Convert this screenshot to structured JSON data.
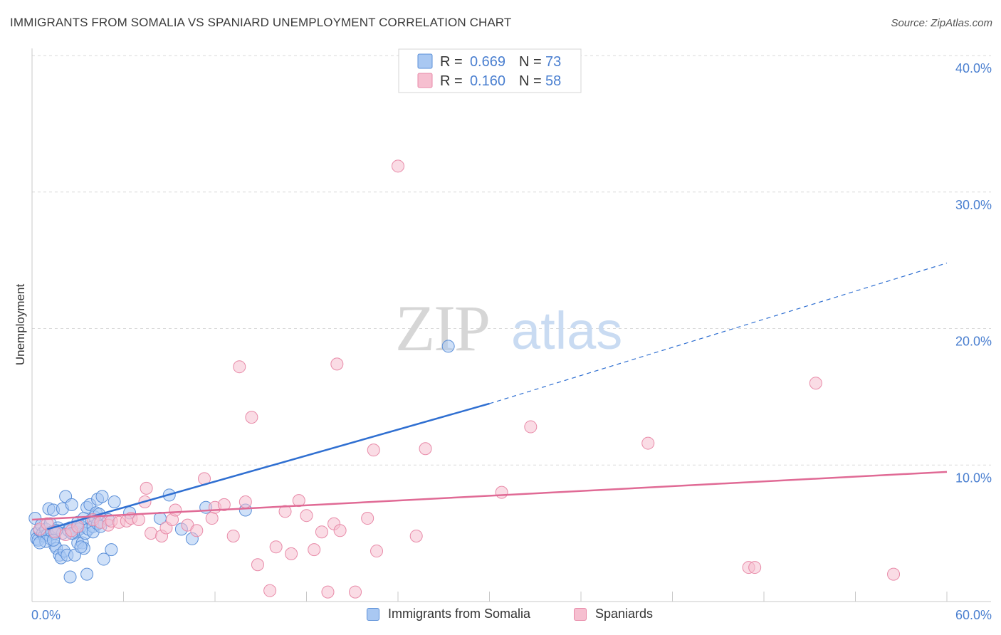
{
  "title": "IMMIGRANTS FROM SOMALIA VS SPANIARD UNEMPLOYMENT CORRELATION CHART",
  "source": "Source: ZipAtlas.com",
  "watermark": {
    "zip": "ZIP",
    "atlas": "atlas"
  },
  "legend_stats": [
    {
      "r_label": "R =",
      "r_value": "0.669",
      "n_label": "N =",
      "n_value": "73"
    },
    {
      "r_label": "R =",
      "r_value": "0.160",
      "n_label": "N =",
      "n_value": "58"
    }
  ],
  "colors": {
    "blue_fill": "#a9c8f2",
    "blue_stroke": "#5b8fd8",
    "blue_line": "#2f6fd1",
    "pink_fill": "#f6bfd0",
    "pink_stroke": "#e88aa8",
    "pink_line": "#e06a95",
    "axis_text": "#4a7fd0",
    "grid": "#d9d9d9"
  },
  "chart_data": {
    "type": "scatter",
    "title": "IMMIGRANTS FROM SOMALIA VS SPANIARD UNEMPLOYMENT CORRELATION CHART",
    "xlabel": "",
    "ylabel": "Unemployment",
    "xlim": [
      0,
      60
    ],
    "ylim": [
      0,
      40
    ],
    "x_tick_labels": [
      "0.0%",
      "60.0%"
    ],
    "y_ticks": [
      10,
      20,
      30,
      40
    ],
    "y_tick_labels": [
      "10.0%",
      "20.0%",
      "30.0%",
      "40.0%"
    ],
    "grid": "horizontal dashed",
    "legend_position": "top-center",
    "series": [
      {
        "name": "Immigrants from Somalia",
        "color": "blue",
        "points": [
          [
            0.2,
            6.1
          ],
          [
            0.3,
            5.0
          ],
          [
            0.3,
            4.6
          ],
          [
            0.4,
            4.5
          ],
          [
            0.5,
            5.2
          ],
          [
            0.6,
            5.6
          ],
          [
            0.7,
            5.0
          ],
          [
            0.8,
            4.8
          ],
          [
            0.9,
            5.3
          ],
          [
            1.0,
            4.9
          ],
          [
            1.1,
            6.8
          ],
          [
            1.2,
            5.7
          ],
          [
            1.2,
            4.6
          ],
          [
            1.3,
            5.1
          ],
          [
            1.4,
            6.7
          ],
          [
            1.5,
            5.0
          ],
          [
            1.5,
            4.1
          ],
          [
            1.6,
            3.9
          ],
          [
            1.7,
            5.4
          ],
          [
            1.8,
            3.4
          ],
          [
            1.9,
            3.2
          ],
          [
            2.0,
            5.0
          ],
          [
            2.0,
            6.8
          ],
          [
            2.1,
            3.7
          ],
          [
            2.2,
            7.7
          ],
          [
            2.3,
            3.4
          ],
          [
            2.4,
            5.2
          ],
          [
            2.5,
            5.4
          ],
          [
            2.5,
            1.8
          ],
          [
            2.6,
            7.1
          ],
          [
            2.7,
            5.0
          ],
          [
            2.8,
            3.4
          ],
          [
            2.9,
            5.1
          ],
          [
            3.0,
            5.8
          ],
          [
            3.0,
            4.3
          ],
          [
            3.1,
            5.3
          ],
          [
            3.2,
            5.5
          ],
          [
            3.3,
            4.3
          ],
          [
            3.4,
            6.1
          ],
          [
            3.4,
            3.9
          ],
          [
            3.5,
            5.0
          ],
          [
            3.6,
            2.0
          ],
          [
            3.6,
            6.9
          ],
          [
            3.7,
            5.3
          ],
          [
            3.8,
            7.1
          ],
          [
            3.9,
            6.0
          ],
          [
            4.0,
            5.5
          ],
          [
            4.0,
            5.1
          ],
          [
            4.1,
            6.2
          ],
          [
            4.2,
            6.5
          ],
          [
            4.3,
            5.7
          ],
          [
            4.3,
            7.5
          ],
          [
            4.4,
            6.4
          ],
          [
            4.5,
            5.5
          ],
          [
            4.6,
            7.7
          ],
          [
            4.7,
            3.1
          ],
          [
            5.0,
            6.0
          ],
          [
            5.2,
            3.8
          ],
          [
            5.4,
            7.3
          ],
          [
            6.4,
            6.5
          ],
          [
            8.4,
            6.1
          ],
          [
            9.0,
            7.8
          ],
          [
            9.8,
            5.3
          ],
          [
            10.5,
            4.6
          ],
          [
            11.4,
            6.9
          ],
          [
            14.0,
            6.7
          ],
          [
            27.3,
            18.7
          ],
          [
            1.6,
            5.2
          ],
          [
            2.6,
            5.0
          ],
          [
            3.2,
            4.0
          ],
          [
            0.9,
            4.4
          ],
          [
            1.4,
            4.5
          ],
          [
            0.5,
            4.3
          ]
        ]
      },
      {
        "name": "Spaniards",
        "color": "pink",
        "points": [
          [
            0.5,
            5.3
          ],
          [
            1.0,
            5.7
          ],
          [
            1.5,
            5.1
          ],
          [
            2.2,
            4.9
          ],
          [
            2.6,
            5.2
          ],
          [
            3.0,
            5.5
          ],
          [
            4.0,
            6.0
          ],
          [
            4.5,
            5.8
          ],
          [
            5.0,
            5.6
          ],
          [
            5.2,
            5.9
          ],
          [
            5.7,
            5.8
          ],
          [
            6.2,
            5.9
          ],
          [
            6.5,
            6.1
          ],
          [
            7.4,
            7.3
          ],
          [
            7.5,
            8.3
          ],
          [
            7.8,
            5.0
          ],
          [
            8.5,
            4.8
          ],
          [
            8.8,
            5.4
          ],
          [
            9.2,
            6.0
          ],
          [
            9.4,
            6.7
          ],
          [
            10.2,
            5.6
          ],
          [
            10.8,
            5.2
          ],
          [
            11.3,
            9.0
          ],
          [
            11.8,
            6.1
          ],
          [
            12.0,
            6.9
          ],
          [
            12.6,
            7.1
          ],
          [
            13.2,
            4.8
          ],
          [
            13.6,
            17.2
          ],
          [
            14.0,
            7.3
          ],
          [
            14.4,
            13.5
          ],
          [
            14.8,
            2.7
          ],
          [
            15.6,
            0.8
          ],
          [
            16.0,
            4.0
          ],
          [
            16.6,
            6.6
          ],
          [
            17.0,
            3.5
          ],
          [
            17.5,
            7.4
          ],
          [
            18.0,
            6.3
          ],
          [
            18.5,
            3.8
          ],
          [
            19.0,
            5.1
          ],
          [
            19.4,
            0.7
          ],
          [
            19.8,
            5.7
          ],
          [
            20.0,
            17.4
          ],
          [
            20.2,
            5.2
          ],
          [
            21.2,
            0.7
          ],
          [
            22.0,
            6.1
          ],
          [
            22.4,
            11.1
          ],
          [
            22.6,
            3.7
          ],
          [
            24.0,
            31.9
          ],
          [
            25.2,
            4.8
          ],
          [
            25.8,
            11.2
          ],
          [
            30.8,
            8.0
          ],
          [
            32.7,
            12.8
          ],
          [
            40.4,
            11.6
          ],
          [
            47.0,
            2.5
          ],
          [
            47.4,
            2.5
          ],
          [
            51.4,
            16.0
          ],
          [
            56.5,
            2.0
          ],
          [
            7.0,
            6.0
          ]
        ]
      }
    ],
    "trendlines": [
      {
        "series": "Immigrants from Somalia",
        "solid": [
          [
            1.0,
            5.3
          ],
          [
            30.0,
            14.5
          ]
        ],
        "dashed": [
          [
            30.0,
            14.5
          ],
          [
            60.0,
            24.8
          ]
        ]
      },
      {
        "series": "Spaniards",
        "solid": [
          [
            0.0,
            6.0
          ],
          [
            60.0,
            9.5
          ]
        ]
      }
    ]
  },
  "bottom_legend": [
    "Immigrants from Somalia",
    "Spaniards"
  ]
}
